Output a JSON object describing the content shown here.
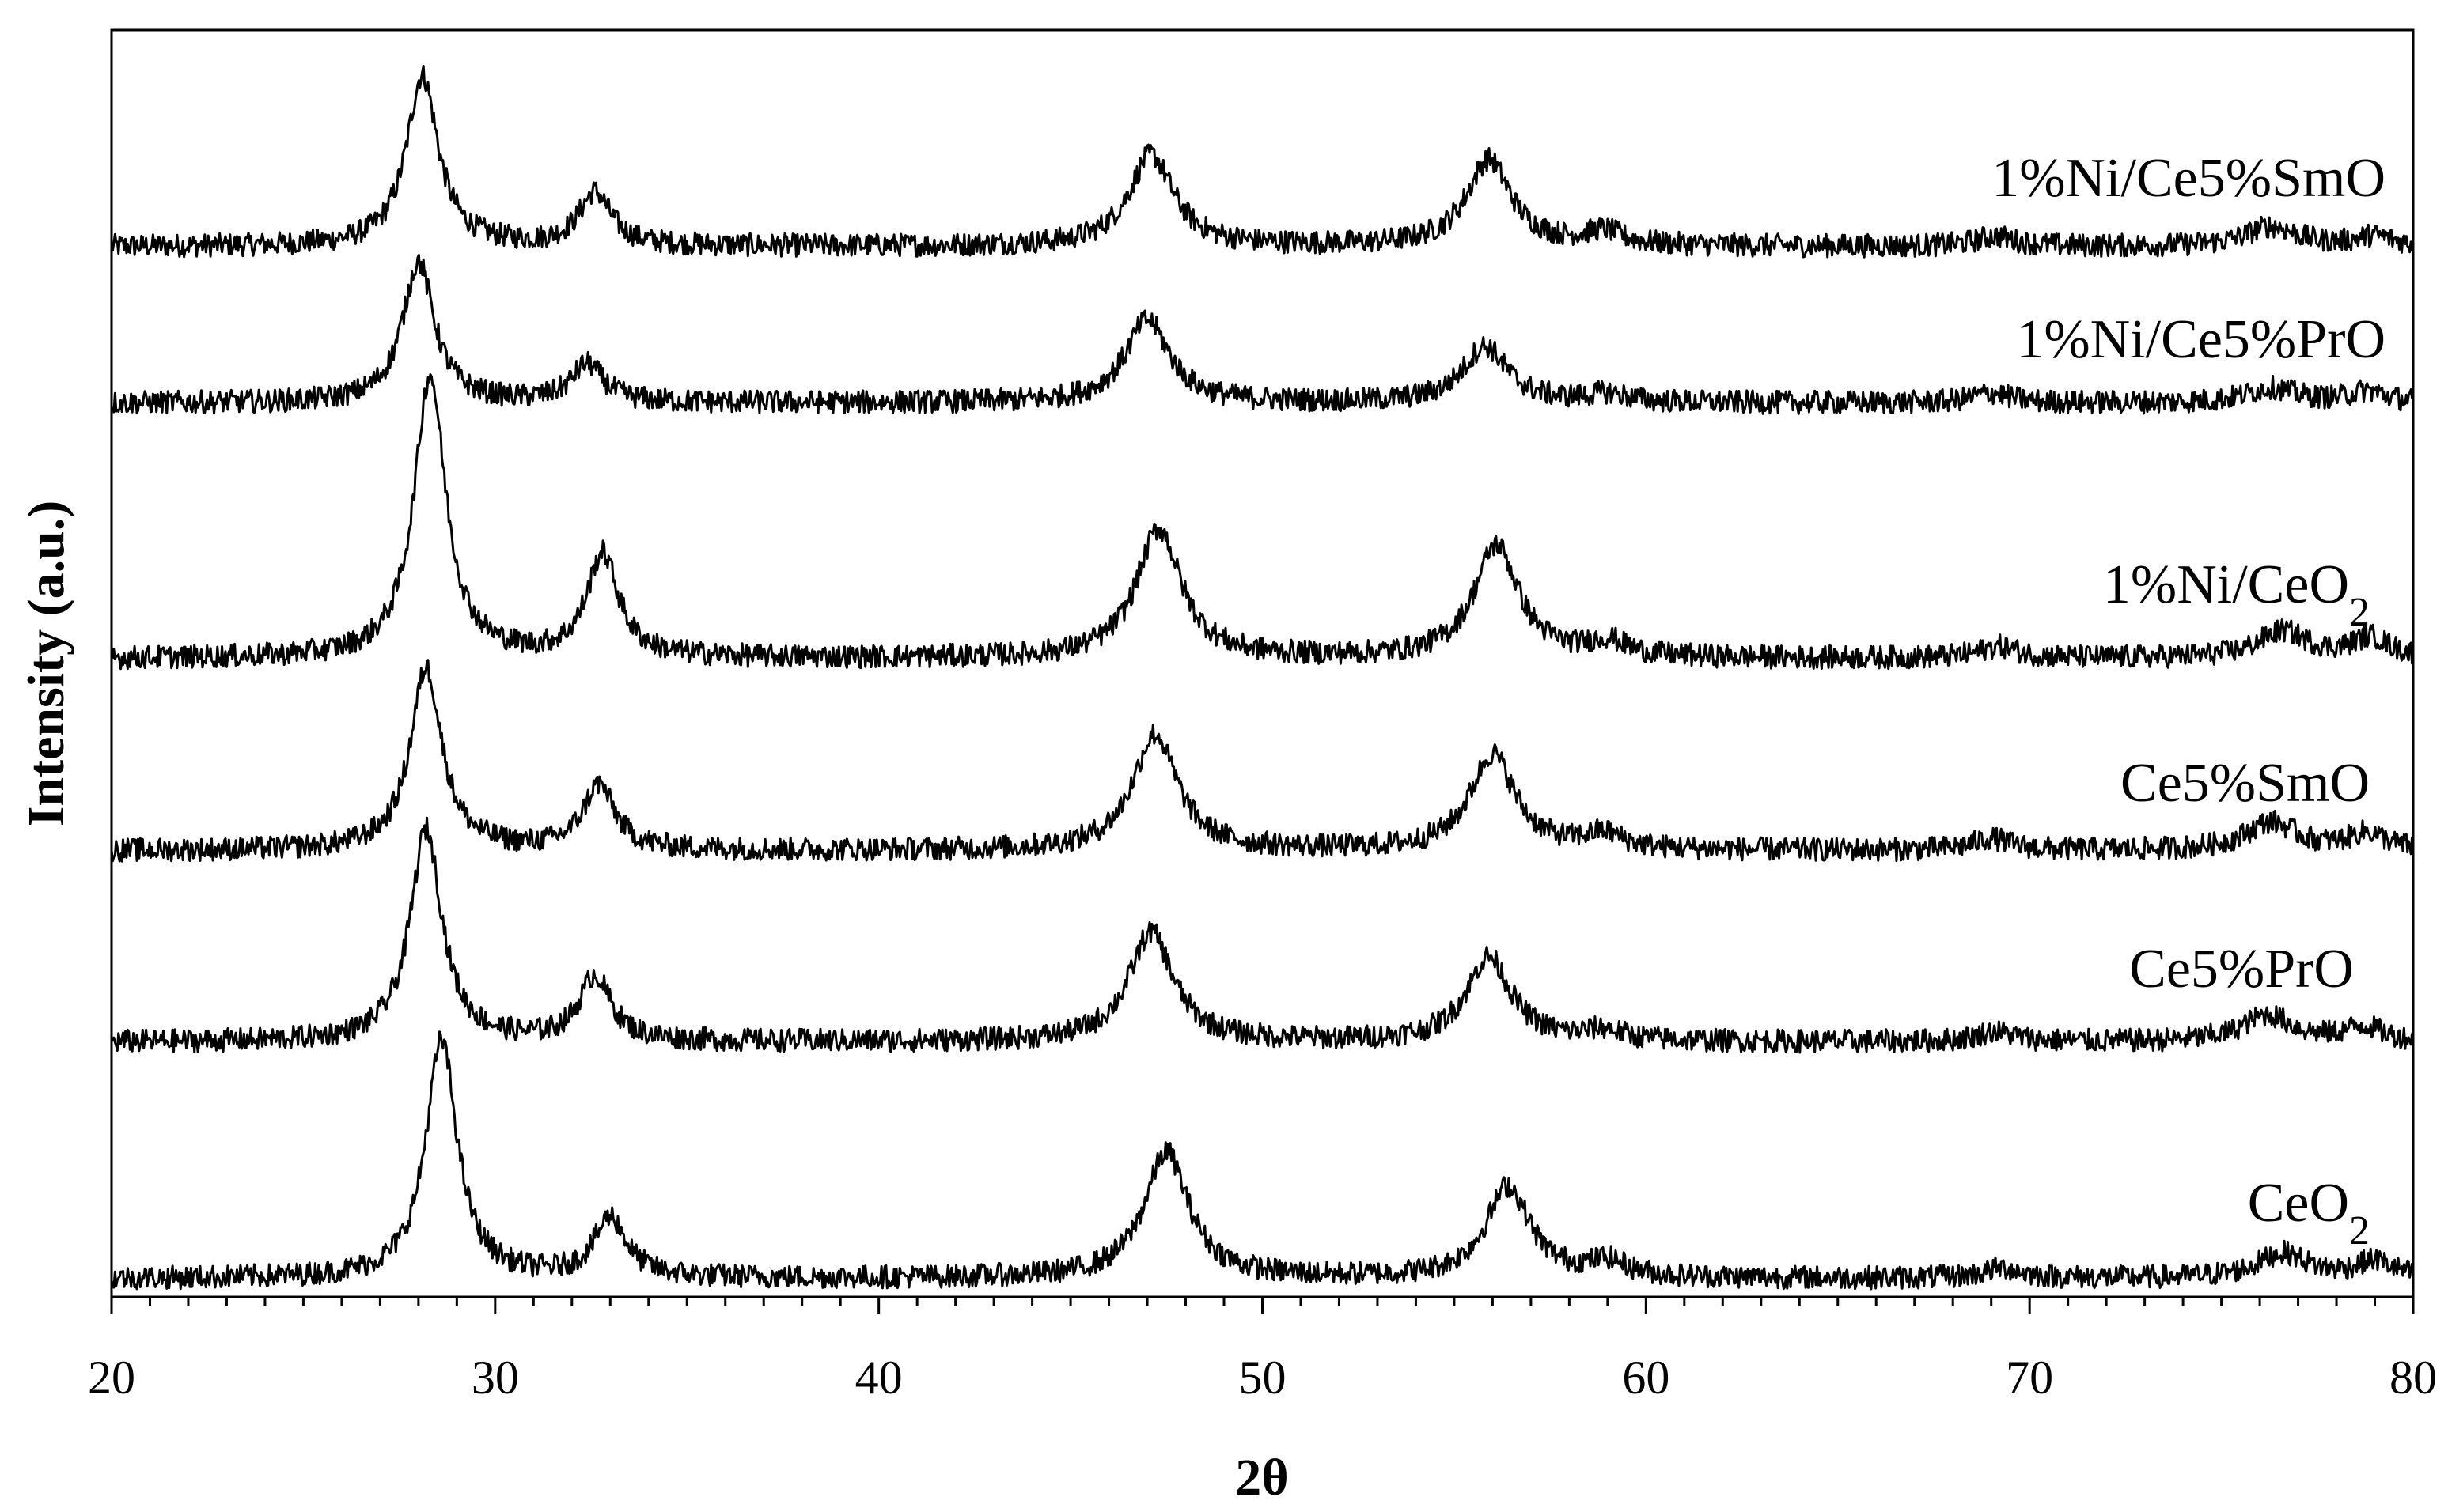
{
  "chart_data": {
    "type": "line",
    "xlabel": "2θ",
    "ylabel": "Intensity (a.u.)",
    "xlim": [
      20,
      80
    ],
    "xticks": [
      "20",
      "30",
      "40",
      "50",
      "60",
      "70",
      "80"
    ],
    "yticks_shown": false,
    "legend": "none",
    "grid": false,
    "line_color": "#000000",
    "series": [
      {
        "name": "1%Ni/Ce5%SmO",
        "label_main": "1%Ni/Ce5%SmO",
        "label_sub": "",
        "baseline": 11,
        "peaks": [
          [
            28.1,
            10.3,
            0.5
          ],
          [
            32.6,
            3.2,
            0.5
          ],
          [
            47.1,
            5.5,
            0.7
          ],
          [
            55.9,
            5.2,
            0.7
          ],
          [
            58.9,
            0.8,
            0.6
          ],
          [
            69.1,
            0.6,
            0.6
          ],
          [
            76.3,
            1.2,
            0.8
          ],
          [
            79.0,
            0.6,
            0.6
          ]
        ]
      },
      {
        "name": "1%Ni/Ce5%PrO",
        "label_main": "1%Ni/Ce5%PrO",
        "label_sub": "",
        "baseline": 5.5,
        "peaks": [
          [
            28.0,
            8.5,
            0.5
          ],
          [
            32.4,
            2.3,
            0.5
          ],
          [
            47.0,
            5.0,
            0.7
          ],
          [
            55.8,
            3.4,
            0.7
          ],
          [
            59.0,
            0.5,
            0.6
          ],
          [
            69.0,
            0.6,
            0.6
          ],
          [
            76.3,
            0.9,
            0.8
          ],
          [
            78.8,
            0.7,
            0.6
          ]
        ]
      },
      {
        "name": "1%Ni/CeO2",
        "label_main": "1%Ni/CeO",
        "label_sub": "2",
        "baseline": 3.3,
        "peaks": [
          [
            28.3,
            17.0,
            0.5
          ],
          [
            32.8,
            6.2,
            0.5
          ],
          [
            47.3,
            7.8,
            0.7
          ],
          [
            56.1,
            6.8,
            0.7
          ],
          [
            59.0,
            0.9,
            0.6
          ],
          [
            69.2,
            0.7,
            0.6
          ],
          [
            76.6,
            1.6,
            0.8
          ],
          [
            78.9,
            1.2,
            0.6
          ]
        ]
      },
      {
        "name": "Ce5%SmO",
        "label_main": "Ce5%SmO",
        "label_sub": "",
        "baseline": 2.5,
        "peaks": [
          [
            28.2,
            11.0,
            0.5
          ],
          [
            32.7,
            3.9,
            0.5
          ],
          [
            47.2,
            7.0,
            0.7
          ],
          [
            56.0,
            5.8,
            0.7
          ],
          [
            58.9,
            0.9,
            0.6
          ],
          [
            69.0,
            0.7,
            0.6
          ],
          [
            76.3,
            1.7,
            0.8
          ],
          [
            78.8,
            1.0,
            0.6
          ]
        ]
      },
      {
        "name": "Ce5%PrO",
        "label_main": "Ce5%PrO",
        "label_sub": "",
        "baseline": 1.5,
        "peaks": [
          [
            28.2,
            12.8,
            0.5
          ],
          [
            32.6,
            3.9,
            0.5
          ],
          [
            47.1,
            6.6,
            0.7
          ],
          [
            55.9,
            5.1,
            0.7
          ],
          [
            58.9,
            0.6,
            0.6
          ],
          [
            69.1,
            0.6,
            0.6
          ],
          [
            76.2,
            1.6,
            0.8
          ],
          [
            78.7,
            0.9,
            0.6
          ]
        ]
      },
      {
        "name": "CeO2",
        "label_main": "CeO",
        "label_sub": "2",
        "baseline": 0.5,
        "peaks": [
          [
            28.6,
            14.3,
            0.5
          ],
          [
            33.0,
            3.6,
            0.5
          ],
          [
            47.5,
            7.6,
            0.7
          ],
          [
            56.4,
            5.5,
            0.7
          ],
          [
            59.0,
            0.9,
            0.6
          ],
          [
            69.3,
            0.6,
            0.6
          ],
          [
            76.6,
            1.5,
            0.8
          ],
          [
            79.0,
            1.0,
            0.6
          ]
        ]
      }
    ]
  }
}
